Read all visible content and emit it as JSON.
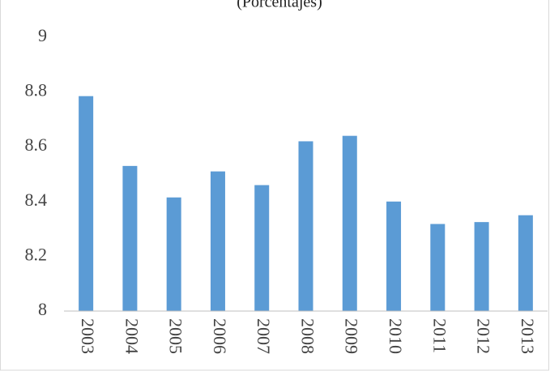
{
  "chart_data": {
    "type": "bar",
    "subtitle": "(Porcentajes)",
    "categories": [
      "2003",
      "2004",
      "2005",
      "2006",
      "2007",
      "2008",
      "2009",
      "2010",
      "2011",
      "2012",
      "2013"
    ],
    "values": [
      8.785,
      8.53,
      8.415,
      8.51,
      8.46,
      8.62,
      8.64,
      8.4,
      8.318,
      8.325,
      8.35
    ],
    "color": "#5b9bd5",
    "ylim": [
      8,
      9
    ],
    "yticks": [
      8,
      8.2,
      8.4,
      8.6,
      8.8,
      9
    ],
    "grid": false
  }
}
